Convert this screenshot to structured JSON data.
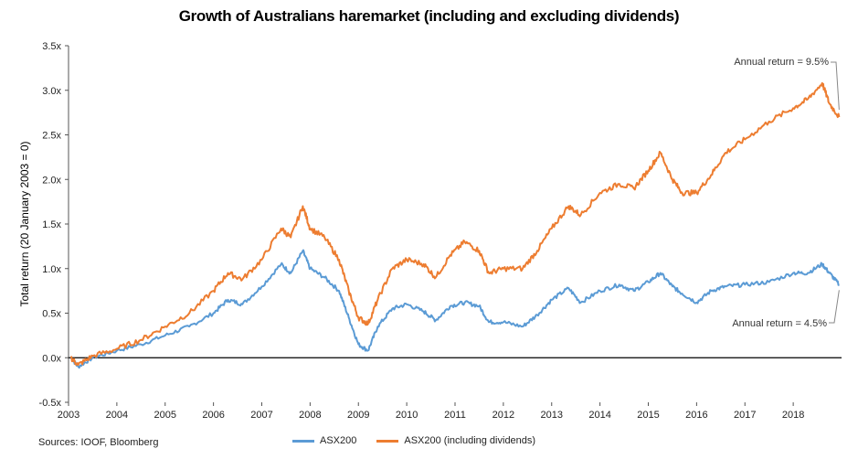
{
  "chart_data": {
    "type": "line",
    "title": "Growth of Australians haremarket (including and excluding dividends)",
    "ylabel": "Total return (20 January 2003 = 0)",
    "xlabel": "",
    "ylim": [
      -0.5,
      3.5
    ],
    "xlim": [
      2003.0,
      2019.0
    ],
    "y_ticks": [
      "3.5x",
      "3.0x",
      "2.5x",
      "2.0x",
      "1.5x",
      "1.0x",
      "0.5x",
      "0.0x",
      "-0.5x"
    ],
    "y_tick_values": [
      3.5,
      3.0,
      2.5,
      2.0,
      1.5,
      1.0,
      0.5,
      0.0,
      -0.5
    ],
    "x_ticks": [
      "2003",
      "2004",
      "2005",
      "2006",
      "2007",
      "2008",
      "2009",
      "2010",
      "2011",
      "2012",
      "2013",
      "2014",
      "2015",
      "2016",
      "2017",
      "2018"
    ],
    "grid": false,
    "legend_position": "bottom",
    "series": [
      {
        "name": "ASX200",
        "color": "#5b9bd5",
        "points": [
          [
            2003.05,
            0.0
          ],
          [
            2003.2,
            -0.1
          ],
          [
            2003.5,
            0.0
          ],
          [
            2004.0,
            0.08
          ],
          [
            2004.5,
            0.15
          ],
          [
            2005.0,
            0.25
          ],
          [
            2005.5,
            0.35
          ],
          [
            2006.0,
            0.5
          ],
          [
            2006.3,
            0.65
          ],
          [
            2006.6,
            0.6
          ],
          [
            2007.0,
            0.8
          ],
          [
            2007.4,
            1.05
          ],
          [
            2007.6,
            0.95
          ],
          [
            2007.85,
            1.2
          ],
          [
            2008.0,
            1.0
          ],
          [
            2008.3,
            0.9
          ],
          [
            2008.6,
            0.75
          ],
          [
            2008.8,
            0.45
          ],
          [
            2009.0,
            0.15
          ],
          [
            2009.2,
            0.08
          ],
          [
            2009.4,
            0.35
          ],
          [
            2009.7,
            0.55
          ],
          [
            2010.0,
            0.6
          ],
          [
            2010.35,
            0.52
          ],
          [
            2010.6,
            0.42
          ],
          [
            2010.9,
            0.58
          ],
          [
            2011.2,
            0.62
          ],
          [
            2011.5,
            0.58
          ],
          [
            2011.7,
            0.4
          ],
          [
            2012.0,
            0.4
          ],
          [
            2012.4,
            0.35
          ],
          [
            2012.7,
            0.48
          ],
          [
            2013.0,
            0.65
          ],
          [
            2013.35,
            0.78
          ],
          [
            2013.6,
            0.62
          ],
          [
            2014.0,
            0.75
          ],
          [
            2014.4,
            0.82
          ],
          [
            2014.7,
            0.75
          ],
          [
            2015.0,
            0.85
          ],
          [
            2015.25,
            0.95
          ],
          [
            2015.5,
            0.8
          ],
          [
            2015.7,
            0.72
          ],
          [
            2016.0,
            0.62
          ],
          [
            2016.3,
            0.75
          ],
          [
            2016.6,
            0.8
          ],
          [
            2017.0,
            0.82
          ],
          [
            2017.5,
            0.85
          ],
          [
            2018.0,
            0.95
          ],
          [
            2018.3,
            0.95
          ],
          [
            2018.6,
            1.05
          ],
          [
            2018.75,
            0.95
          ],
          [
            2018.95,
            0.82
          ]
        ]
      },
      {
        "name": "ASX200 (including dividends)",
        "color": "#ed7d31",
        "points": [
          [
            2003.05,
            0.0
          ],
          [
            2003.2,
            -0.08
          ],
          [
            2003.5,
            0.02
          ],
          [
            2004.0,
            0.1
          ],
          [
            2004.5,
            0.2
          ],
          [
            2005.0,
            0.35
          ],
          [
            2005.5,
            0.5
          ],
          [
            2006.0,
            0.75
          ],
          [
            2006.3,
            0.95
          ],
          [
            2006.6,
            0.88
          ],
          [
            2007.0,
            1.1
          ],
          [
            2007.4,
            1.45
          ],
          [
            2007.6,
            1.35
          ],
          [
            2007.85,
            1.7
          ],
          [
            2008.0,
            1.45
          ],
          [
            2008.3,
            1.35
          ],
          [
            2008.6,
            1.1
          ],
          [
            2008.8,
            0.75
          ],
          [
            2009.0,
            0.45
          ],
          [
            2009.2,
            0.38
          ],
          [
            2009.4,
            0.65
          ],
          [
            2009.7,
            1.0
          ],
          [
            2010.0,
            1.1
          ],
          [
            2010.35,
            1.05
          ],
          [
            2010.6,
            0.9
          ],
          [
            2010.9,
            1.15
          ],
          [
            2011.2,
            1.3
          ],
          [
            2011.5,
            1.2
          ],
          [
            2011.7,
            0.95
          ],
          [
            2012.0,
            1.0
          ],
          [
            2012.4,
            1.0
          ],
          [
            2012.7,
            1.2
          ],
          [
            2013.0,
            1.45
          ],
          [
            2013.35,
            1.7
          ],
          [
            2013.6,
            1.6
          ],
          [
            2014.0,
            1.85
          ],
          [
            2014.4,
            1.95
          ],
          [
            2014.7,
            1.9
          ],
          [
            2015.0,
            2.1
          ],
          [
            2015.25,
            2.3
          ],
          [
            2015.5,
            2.0
          ],
          [
            2015.7,
            1.85
          ],
          [
            2016.0,
            1.85
          ],
          [
            2016.3,
            2.05
          ],
          [
            2016.6,
            2.3
          ],
          [
            2017.0,
            2.45
          ],
          [
            2017.5,
            2.65
          ],
          [
            2018.0,
            2.8
          ],
          [
            2018.3,
            2.9
          ],
          [
            2018.6,
            3.08
          ],
          [
            2018.75,
            2.85
          ],
          [
            2018.95,
            2.7
          ]
        ]
      }
    ],
    "annotations": [
      {
        "text": "Annual return = 9.5%",
        "series": "ASX200 (including dividends)"
      },
      {
        "text": "Annual return = 4.5%",
        "series": "ASX200"
      }
    ]
  },
  "source_text": "Sources: IOOF, Bloomberg"
}
